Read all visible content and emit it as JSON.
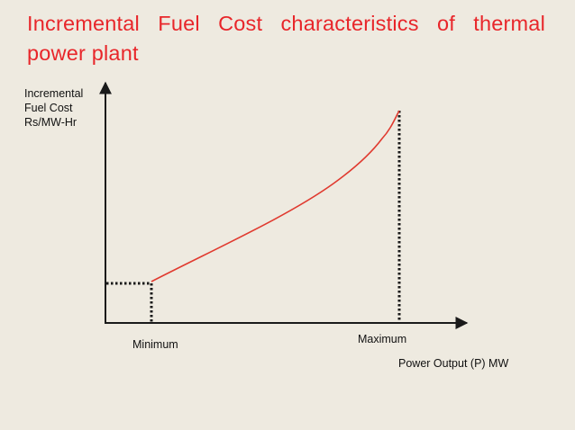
{
  "title": "Incremental Fuel Cost characteristics of thermal power plant",
  "y_axis_label": {
    "line1": "Incremental",
    "line2": "Fuel Cost",
    "line3": "Rs/MW-Hr"
  },
  "x_axis_label": "Power Output (P) MW",
  "markers": {
    "minimum": "Minimum",
    "maximum": "Maximum"
  },
  "colors": {
    "background": "#eeeae0",
    "title": "#e8262a",
    "curve": "#e03a2f",
    "axes": "#1a1a1a",
    "text": "#111111"
  }
}
